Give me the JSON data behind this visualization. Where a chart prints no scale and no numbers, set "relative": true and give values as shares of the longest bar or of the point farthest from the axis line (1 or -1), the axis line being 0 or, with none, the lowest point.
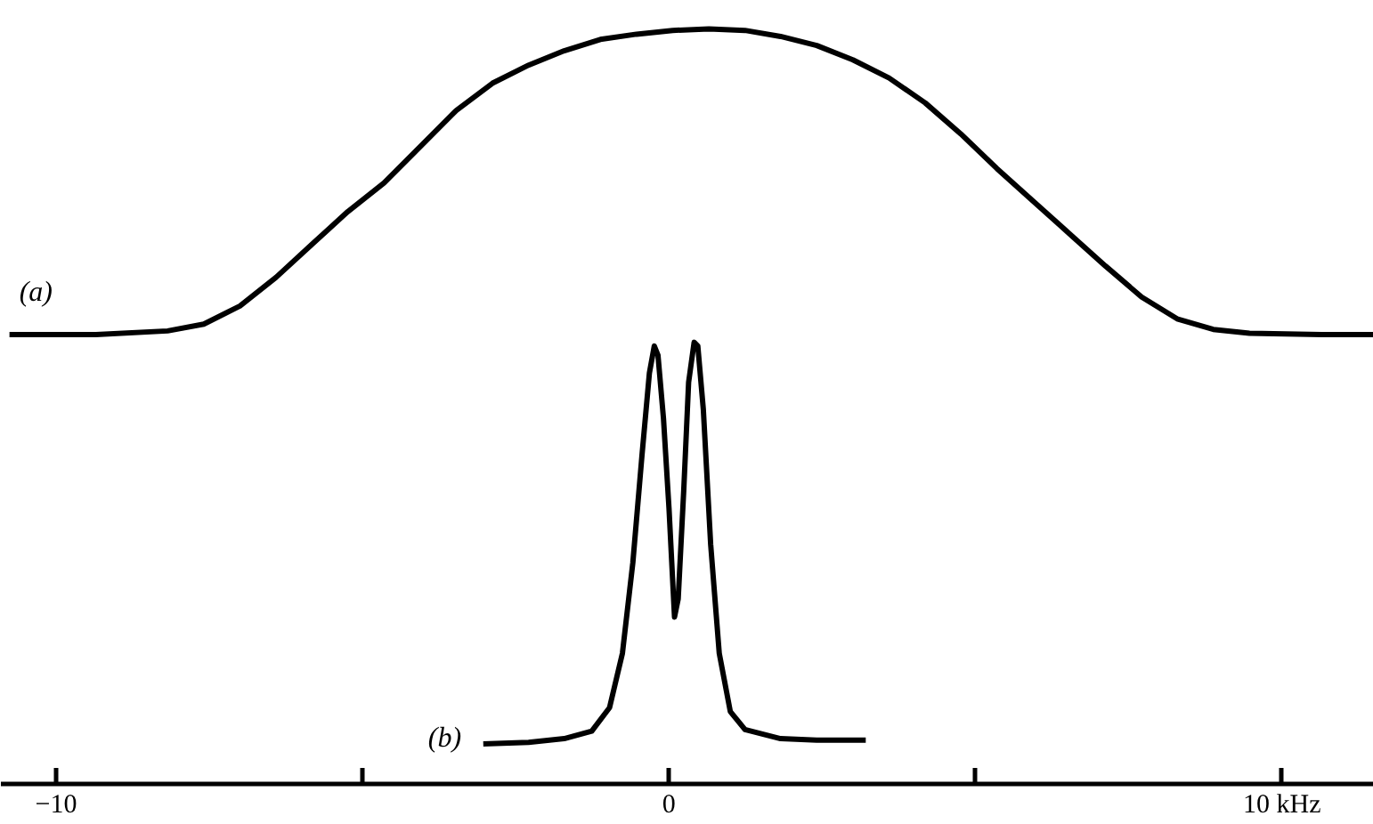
{
  "chart_data": {
    "type": "line",
    "relative": true,
    "xlim": [
      -10.9,
      11.5
    ],
    "xticks": [
      {
        "value": -10,
        "label": "−10"
      },
      {
        "value": -5,
        "label": null
      },
      0,
      {
        "value": 5,
        "label": null
      },
      {
        "value": 10,
        "label": "10 kHz"
      }
    ],
    "grid": false,
    "marker": "none",
    "line_style": "solid",
    "series": [
      {
        "name": "(a)",
        "color": "#000000",
        "x": [
          -10.76,
          -9.35,
          -8.18,
          -7.59,
          -7.0,
          -6.41,
          -5.82,
          -5.24,
          -4.65,
          -4.06,
          -3.47,
          -2.88,
          -2.29,
          -1.71,
          -1.12,
          -0.53,
          0.06,
          0.65,
          1.24,
          1.82,
          2.41,
          3.0,
          3.59,
          4.18,
          4.76,
          5.35,
          5.94,
          6.53,
          7.12,
          7.71,
          8.29,
          8.88,
          9.47,
          10.65,
          11.5
        ],
        "values": [
          0.595,
          0.595,
          0.6,
          0.609,
          0.633,
          0.671,
          0.715,
          0.758,
          0.796,
          0.844,
          0.892,
          0.928,
          0.952,
          0.971,
          0.986,
          0.993,
          0.998,
          1.0,
          0.998,
          0.99,
          0.978,
          0.959,
          0.935,
          0.902,
          0.861,
          0.815,
          0.772,
          0.729,
          0.686,
          0.645,
          0.616,
          0.602,
          0.597,
          0.595,
          0.595
        ]
      },
      {
        "name": "(b)",
        "color": "#000000",
        "x": [
          -3.03,
          -2.29,
          -1.71,
          -1.26,
          -0.97,
          -0.76,
          -0.59,
          -0.44,
          -0.32,
          -0.24,
          -0.18,
          -0.09,
          0,
          0.09,
          0.15,
          0.24,
          0.32,
          0.41,
          0.47,
          0.56,
          0.68,
          0.82,
          1.0,
          1.24,
          1.82,
          2.41,
          3.21
        ],
        "values": [
          0.053,
          0.055,
          0.06,
          0.07,
          0.101,
          0.173,
          0.293,
          0.436,
          0.544,
          0.58,
          0.568,
          0.484,
          0.365,
          0.221,
          0.245,
          0.388,
          0.532,
          0.585,
          0.58,
          0.496,
          0.317,
          0.173,
          0.096,
          0.072,
          0.06,
          0.058,
          0.058
        ]
      }
    ]
  }
}
